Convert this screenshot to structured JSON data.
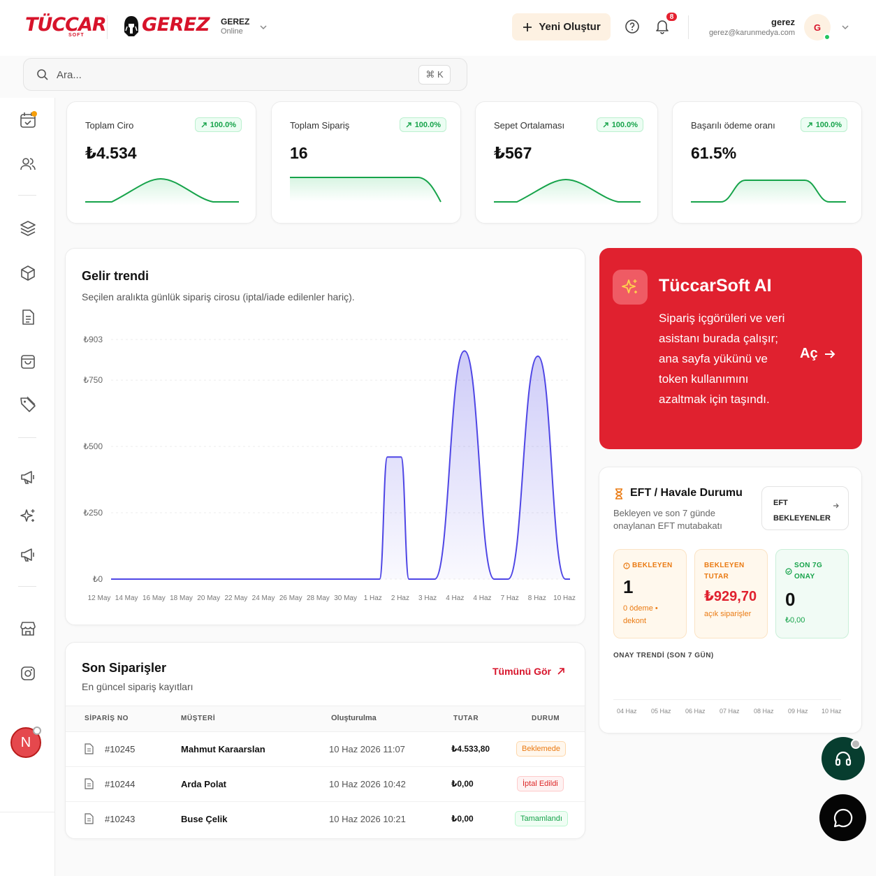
{
  "header": {
    "brand_primary": "TÜCCAR",
    "brand_primary_sub": "SOFT",
    "brand_store_logo": "GEREZ",
    "store_name": "GEREZ",
    "store_status": "Online",
    "new_button": "Yeni Oluştur",
    "notification_count": "8",
    "user_name": "gerez",
    "user_email": "gerez@karunmedya.com",
    "user_initial": "G"
  },
  "search": {
    "placeholder": "Ara...",
    "shortcut": "⌘ K"
  },
  "sidebar": {
    "icons": [
      "calendar-check-icon",
      "users-icon",
      "layers-icon",
      "package-icon",
      "document-list-icon",
      "shopping-bag-icon",
      "tag-icon",
      "megaphone-icon",
      "sparkles-icon",
      "megaphone-icon",
      "store-icon",
      "instagram-icon"
    ],
    "user_initial": "N"
  },
  "stats": [
    {
      "label": "Toplam Ciro",
      "value": "₺4.534",
      "change": "100.0%"
    },
    {
      "label": "Toplam Sipariş",
      "value": "16",
      "change": "100.0%"
    },
    {
      "label": "Sepet Ortalaması",
      "value": "₺567",
      "change": "100.0%"
    },
    {
      "label": "Başarılı ödeme oranı",
      "value": "61.5%",
      "change": "100.0%"
    }
  ],
  "revenue": {
    "title": "Gelir trendi",
    "subtitle": "Seçilen aralıkta günlük sipariş cirosu (iptal/iade edilenler hariç)."
  },
  "chart_data": {
    "type": "area",
    "x": [
      "12 May",
      "14 May",
      "16 May",
      "18 May",
      "20 May",
      "22 May",
      "24 May",
      "26 May",
      "28 May",
      "30 May",
      "1 Haz",
      "2 Haz",
      "3 Haz",
      "4 Haz",
      "4 Haz",
      "7 Haz",
      "8 Haz",
      "10 Haz"
    ],
    "y_ticks": [
      "₺0",
      "₺250",
      "₺500",
      "₺750",
      "₺903"
    ],
    "y_tick_values": [
      0,
      250,
      500,
      750,
      903
    ],
    "ylim": [
      0,
      903
    ],
    "grid": true,
    "points": [
      [
        0,
        0
      ],
      [
        0.585,
        0
      ],
      [
        0.602,
        460
      ],
      [
        0.632,
        460
      ],
      [
        0.649,
        0
      ],
      [
        0.69,
        0
      ],
      [
        0.705,
        0
      ],
      [
        0.77,
        860
      ],
      [
        0.835,
        0
      ],
      [
        0.865,
        0
      ],
      [
        0.93,
        840
      ],
      [
        0.99,
        0
      ],
      [
        1,
        0
      ]
    ],
    "color": "#4f46e5"
  },
  "ai": {
    "title": "TüccarSoft AI",
    "description": "Sipariş içgörüleri ve veri asistanı burada çalışır; ana sayfa yükünü ve token kullanımını azaltmak için taşındı.",
    "open": "Aç"
  },
  "eft": {
    "title": "EFT / Havale Durumu",
    "subtitle": "Bekleyen ve son 7 günde onaylanan EFT mutabakatı",
    "button_line1": "EFT",
    "button_line2": "BEKLEYENLER",
    "tiles": [
      {
        "label": "BEKLEYEN",
        "value": "1",
        "note": "0 ödeme • dekont"
      },
      {
        "label": "BEKLEYEN TUTAR",
        "value": "₺929,70",
        "note": "açık siparişler"
      },
      {
        "label": "SON 7G ONAY",
        "value": "0",
        "note": "₺0,00"
      }
    ],
    "trend_title": "ONAY TRENDİ (SON 7 GÜN)",
    "trend_days": [
      "04 Haz",
      "05 Haz",
      "06 Haz",
      "07 Haz",
      "08 Haz",
      "09 Haz",
      "10 Haz"
    ]
  },
  "orders": {
    "title": "Son Siparişler",
    "subtitle": "En güncel sipariş kayıtları",
    "view_all": "Tümünü Gör",
    "headers": {
      "no": "SİPARİŞ NO",
      "customer": "MÜŞTERİ",
      "created": "Oluşturulma",
      "amount": "TUTAR",
      "status": "DURUM"
    },
    "rows": [
      {
        "no": "#10245",
        "customer": "Mahmut Karaarslan",
        "created": "10 Haz 2026 11:07",
        "amount": "₺4.533,80",
        "status": "Beklemede"
      },
      {
        "no": "#10244",
        "customer": "Arda Polat",
        "created": "10 Haz 2026 10:42",
        "amount": "₺0,00",
        "status": "İptal Edildi"
      },
      {
        "no": "#10243",
        "customer": "Buse Çelik",
        "created": "10 Haz 2026 10:21",
        "amount": "₺0,00",
        "status": "Tamamlandı"
      }
    ]
  },
  "colors": {
    "brand": "#d7132a",
    "accent_chart": "#4f46e5",
    "success": "#16a34a",
    "warning": "#ea7a12"
  }
}
